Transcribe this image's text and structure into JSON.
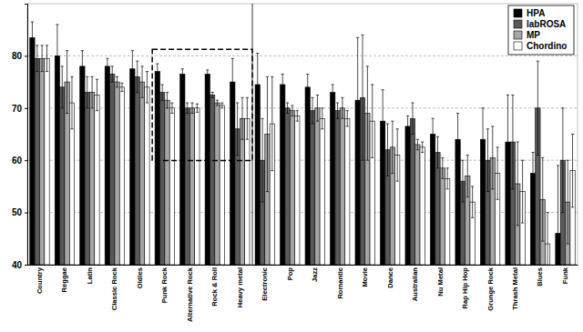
{
  "chart_data": {
    "type": "bar",
    "categories": [
      "Country",
      "Reggae",
      "Latin",
      "Classic Rock",
      "Oldies",
      "Punk Rock",
      "Alternative Rock",
      "Rock & Roll",
      "Heavy metal",
      "Electronic",
      "Pop",
      "Jazz",
      "Romantic",
      "Movie",
      "Dance",
      "Australian",
      "Nu Metal",
      "Rap Hip Hop",
      "Grunge Rock",
      "Thrash Metal",
      "Blues",
      "Funk"
    ],
    "series": [
      {
        "name": "HPA",
        "color": "#000000",
        "values": [
          83.5,
          80,
          78,
          78,
          77.5,
          77,
          76.5,
          76.5,
          75,
          74.5,
          74.5,
          74,
          73,
          71.5,
          67.5,
          66.5,
          65,
          64,
          64,
          63.5,
          57.5,
          46
        ],
        "errors": [
          3,
          6,
          3,
          1.5,
          3.5,
          1.5,
          1,
          0.8,
          4.5,
          6,
          2,
          2.5,
          1.5,
          12,
          6,
          2,
          3,
          5,
          6,
          9,
          4,
          13
        ]
      },
      {
        "name": "labROSA",
        "color": "#595959",
        "values": [
          79.5,
          74,
          73,
          76.5,
          76,
          73,
          70,
          72.5,
          66,
          60,
          70,
          69.5,
          69.5,
          72,
          62,
          68,
          61.5,
          56,
          60,
          63.5,
          70,
          60
        ],
        "errors": [
          2.5,
          4,
          3,
          1.5,
          3,
          1.5,
          1,
          0.5,
          5,
          8,
          1,
          2.5,
          1.5,
          12,
          5,
          3,
          3,
          4,
          6,
          9,
          9,
          10
        ]
      },
      {
        "name": "MP",
        "color": "#a6a6a6",
        "values": [
          79.5,
          75,
          73,
          75,
          75,
          71.5,
          70,
          71,
          68,
          65,
          69.5,
          70,
          70,
          69,
          62.5,
          63,
          58.5,
          57,
          60.5,
          55.5,
          52.5,
          52
        ],
        "errors": [
          2.5,
          6,
          3,
          1,
          3,
          1.5,
          1,
          0.5,
          4,
          11,
          1,
          2.5,
          2,
          9,
          5,
          1,
          2,
          4,
          6,
          8,
          8,
          8
        ]
      },
      {
        "name": "Chordino",
        "color": "#ffffff",
        "values": [
          79.5,
          71,
          72.5,
          74,
          74,
          70,
          70,
          70.5,
          68,
          67,
          68.5,
          68,
          68,
          67.5,
          61,
          62.5,
          56.5,
          52,
          57.5,
          54,
          44,
          58
        ],
        "errors": [
          2.5,
          5,
          3,
          0.8,
          3,
          1,
          0.8,
          0.5,
          4,
          9,
          1,
          2,
          1.5,
          7,
          5,
          1,
          2,
          3,
          5,
          6,
          6,
          7
        ]
      }
    ],
    "ylim": [
      40,
      90
    ],
    "yticks": [
      40,
      50,
      60,
      70,
      80
    ],
    "grid": true,
    "legend": "top-right"
  }
}
